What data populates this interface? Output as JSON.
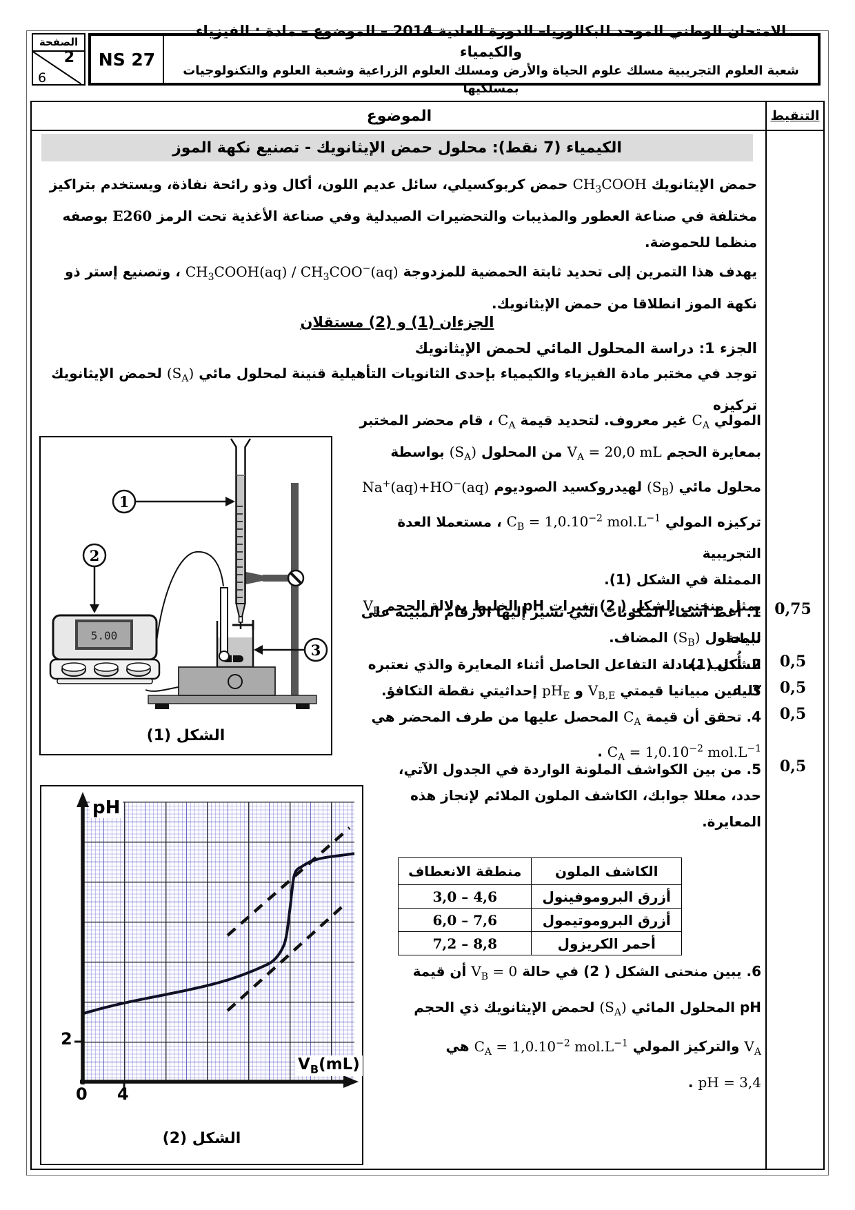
{
  "header": {
    "page_box_label": "الصفحة",
    "page_current": "2",
    "page_total": "6",
    "exam_ref": "NS 27",
    "title_line1": "الامتحان الوطني الموحد للبكالوريا– الدورة العادية 2014 – الموضوع   – مادة : الفيزياء والكيمياء",
    "title_line2": "شعبة العلوم التجريبية مسلك علوم الحياة والأرض ومسلك العلوم الزراعية وشعبة العلوم والتكنولوجيات بمسلكيها"
  },
  "table_headers": {
    "subject": "الموضوع",
    "grading": "التنقيط"
  },
  "banner": "الكيمياء (7 نقط): محلول حمض الإيثانويك - تصنيع نكهة الموز",
  "intro_html": "حمض الإيثانويك <span class='f' dir='ltr'>CH<sub>3</sub>COOH</span> حمض كربوكسيلي، سائل عديم اللون، أكال وذو رائحة نفاذة، ويستخدم بتراكيز<br>مختلفة في صناعة العطور والمذيبات والتحضيرات الصيدلية وفي صناعة الأغذية تحت الرمز <span class='f b' dir='ltr'>E260</span> بوصفه<br>منظما للحموضة.<br>يهدف هذا التمرين إلى تحديد ثابتة الحمضية للمزدوجة <span class='f' dir='ltr'>CH<sub>3</sub>COOH(aq) / CH<sub>3</sub>COO<sup>−</sup>(aq)</span> ، وتصنيع إستر ذو<br>نكهة الموز انطلاقا من حمض الإيثانويك.",
  "parts_note": "الجزءان (1) و (2) مستقلان",
  "part1_title": "الجزء 1: دراسة المحلول المائي لحمض الإيثانويك",
  "part1_line1_html": "توجد في مختبر مادة الفيزياء والكيمياء بإحدى الثانويات التأهيلية قنينة لمحلول مائي <span class='f' dir='ltr'>(S<sub>A</sub>)</span> لحمض الإيثانويك تركيزه",
  "side_text_html": "المولي <span class='f' dir='ltr'>C<sub>A</sub></span> غير معروف. لتحديد قيمة <span class='f' dir='ltr'>C<sub>A</sub></span> ، قام محضر المختبر<br>بمعايرة الحجم <span class='f' dir='ltr'>V<sub>A</sub> = 20,0 mL</span> من المحلول <span class='f' dir='ltr'>(S<sub>A</sub>)</span> بواسطة<br>محلول مائي <span class='f' dir='ltr'>(S<sub>B</sub>)</span> لهيدروكسيد الصوديوم <span class='f' dir='ltr'>Na<sup>+</sup>(aq)+HO<sup>−</sup>(aq)</span><br>تركيزه المولي <span class='f' dir='ltr'>C<sub>B</sub> = 1,0.10<sup>−2</sup> mol.L<sup>−1</sup></span> ، مستعملا العدة التجريبية<br>الممثلة في الشكل (1).<br>يمثل منحنى الشكل ( 2) تغيرات pH الخليط بدلالة الحجم <span class='f' dir='ltr'>V<sub>B</sub></span><br>للمحلول <span class='f' dir='ltr'>(S<sub>B</sub>)</span> المضاف.",
  "questions": {
    "q1_html": "1. أعط أسماء المكونات التي تشير إليها الأرقام المبينة على تبيانة<br>الشكل (1).",
    "q2_html": "2. أُكتب معادلة التفاعل الحاصل أثناء المعايرة والذي نعتبره كليا.",
    "q3_html": "3. عين مبيانيا قيمتي <span class='f' dir='ltr'>V<sub>B,E</sub></span> و <span class='f' dir='ltr'>pH<sub>E</sub></span> إحداثيتي نقطة التكافؤ.",
    "q4_html": "4. تحقق أن قيمة <span class='f' dir='ltr'>C<sub>A</sub></span> المحصل عليها من طرف المحضر هي<br><span class='f' dir='ltr'>C<sub>A</sub> = 1,0.10<sup>−2</sup> mol.L<sup>−1</sup></span> .",
    "q5_html": "5. من بين الكواشف الملونة الواردة في الجدول الآتي،<br>حدد، معللا جوابك، الكاشف الملون الملائم لإنجاز هذه<br>المعايرة.",
    "q6_html": "6. يبين منحنى الشكل ( 2) في حالة <span class='f' dir='ltr'>V<sub>B</sub> = 0</span> أن قيمة<br>pH المحلول المائي <span class='f' dir='ltr'>(S<sub>A</sub>)</span> لحمض الإيثانويك ذي الحجم<br><span class='f' dir='ltr'>V<sub>A</sub></span> والتركيز المولي <span class='f' dir='ltr'>C<sub>A</sub> = 1,0.10<sup>−2</sup> mol.L<sup>−1</sup></span> هي<br><span class='f' dir='ltr'>pH = 3,4</span> ."
  },
  "marks": [
    "0,75",
    "0,5",
    "0,5",
    "0,5",
    "0,5"
  ],
  "indicator_table": {
    "col_indicator": "الكاشف الملون",
    "col_range": "منطقة الانعطاف",
    "rows": [
      {
        "indicator": "أزرق البروموفينول",
        "range": "3,0 – 4,6"
      },
      {
        "indicator": "أزرق البروموتيمول",
        "range": "6,0 – 7,6"
      },
      {
        "indicator": "أحمر الكريزول",
        "range": "7,2 – 8,8"
      }
    ]
  },
  "figure1": {
    "caption": "الشكل (1)",
    "label_1": "1",
    "label_2": "2",
    "label_3": "3",
    "ph_meter_reading": "5.00"
  },
  "figure2": {
    "caption": "الشكل (2)",
    "y_axis_label": "pH",
    "x_axis_label_html": "V<sub>B</sub>(mL)",
    "y_tick_2": "2",
    "x_tick_0": "0",
    "x_tick_4": "4"
  },
  "chart_data": {
    "type": "line",
    "title": "الشكل (2)",
    "xlabel": "VB (mL)",
    "ylabel": "pH",
    "x": [
      0,
      2,
      4,
      6,
      8,
      10,
      12,
      14,
      16,
      18,
      19,
      19.5,
      20,
      20.5,
      21,
      22,
      24,
      26
    ],
    "y": [
      3.4,
      3.7,
      3.95,
      4.15,
      4.35,
      4.55,
      4.8,
      5.05,
      5.4,
      5.9,
      6.3,
      6.9,
      8.5,
      10.3,
      10.7,
      11.0,
      11.25,
      11.4
    ],
    "xlim": [
      0,
      26
    ],
    "ylim": [
      0,
      14
    ],
    "x_major_step": 4,
    "y_major_step": 2,
    "grid": "millimeter paper, fine blue grid with black major lines",
    "legend_position": "none",
    "annotations": [
      "two parallel dashed tangent lines (tangent method) around the equivalence jump"
    ],
    "initial_pH_at_VB0": 3.4,
    "equivalence": {
      "VBE_mL": 20,
      "pHE": 8.5
    }
  }
}
